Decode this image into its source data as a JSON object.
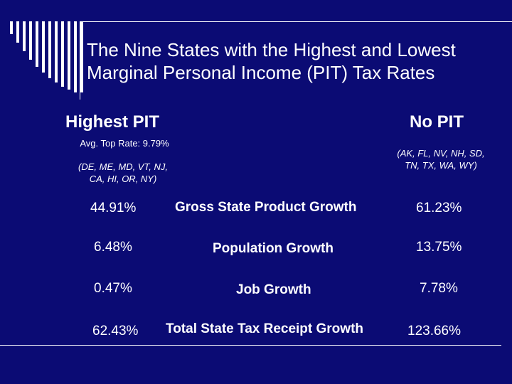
{
  "title_line1": "The Nine States with the Highest and Lowest",
  "title_line2": "Marginal Personal Income (PIT) Tax Rates",
  "highest": {
    "header": "Highest PIT",
    "avg": "Avg. Top Rate: 9.79%",
    "states_line1": "(DE, ME, MD, VT, NJ,",
    "states_line2": "CA, HI, OR, NY)"
  },
  "none": {
    "header": "No PIT",
    "states_line1": "(AK, FL, NV, NH, SD,",
    "states_line2": "TN, TX, WA, WY)"
  },
  "rows": [
    {
      "left": "44.91%",
      "label": "Gross State Product Growth",
      "right": "61.23%"
    },
    {
      "left": "6.48%",
      "label": "Population Growth",
      "right": "13.75%"
    },
    {
      "left": "0.47%",
      "label": "Job Growth",
      "right": "7.78%"
    },
    {
      "left": "62.43%",
      "label": "Total State Tax Receipt Growth",
      "right": "123.66%"
    }
  ]
}
